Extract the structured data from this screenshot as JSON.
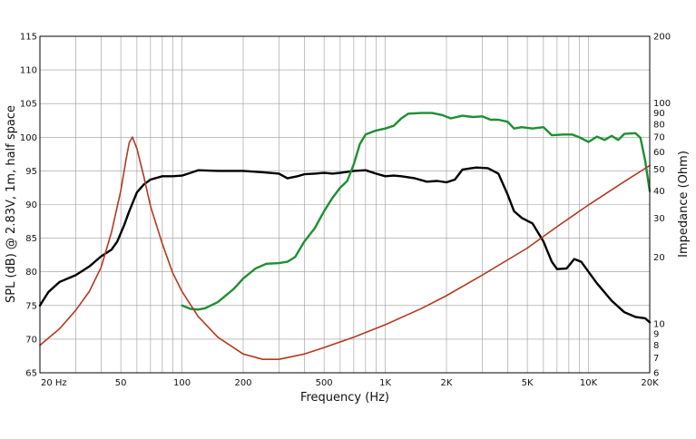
{
  "chart_data": {
    "type": "line",
    "title": "",
    "xlabel": "Frequency (Hz)",
    "ylabel": "SPL (dB) @ 2.83V, 1m, half space",
    "y2label": "Impedance (Ohm)",
    "x_scale": "log",
    "xlim": [
      20,
      20000
    ],
    "ylim": [
      65,
      115
    ],
    "y2lim": [
      6,
      200
    ],
    "y2_scale": "log",
    "grid": true,
    "x_ticks": [
      {
        "value": 20,
        "label": "20  Hz"
      },
      {
        "value": 50,
        "label": "50"
      },
      {
        "value": 100,
        "label": "100"
      },
      {
        "value": 200,
        "label": "200"
      },
      {
        "value": 500,
        "label": "500"
      },
      {
        "value": 1000,
        "label": "1K"
      },
      {
        "value": 2000,
        "label": "2K"
      },
      {
        "value": 5000,
        "label": "5K"
      },
      {
        "value": 10000,
        "label": "10K"
      },
      {
        "value": 20000,
        "label": "20K"
      }
    ],
    "y_ticks": [
      "65",
      "70",
      "75",
      "80",
      "85",
      "90",
      "95",
      "100",
      "105",
      "110",
      "115"
    ],
    "y2_ticks": [
      {
        "value": 6,
        "label": "6"
      },
      {
        "value": 7,
        "label": "7"
      },
      {
        "value": 8,
        "label": "8"
      },
      {
        "value": 9,
        "label": "9"
      },
      {
        "value": 10,
        "label": "10"
      },
      {
        "value": 20,
        "label": "20"
      },
      {
        "value": 30,
        "label": "30"
      },
      {
        "value": 40,
        "label": "40"
      },
      {
        "value": 50,
        "label": "50"
      },
      {
        "value": 60,
        "label": "60"
      },
      {
        "value": 70,
        "label": "70"
      },
      {
        "value": 80,
        "label": "80"
      },
      {
        "value": 90,
        "label": "90"
      },
      {
        "value": 100,
        "label": "100"
      },
      {
        "value": 200,
        "label": "200"
      }
    ],
    "series": [
      {
        "color": "#000000",
        "axis": "left",
        "points": [
          [
            20,
            75
          ],
          [
            22,
            77
          ],
          [
            25,
            78.5
          ],
          [
            30,
            79.5
          ],
          [
            35,
            80.8
          ],
          [
            40,
            82.3
          ],
          [
            45,
            83.3
          ],
          [
            48,
            84.5
          ],
          [
            52,
            87
          ],
          [
            55,
            89
          ],
          [
            60,
            91.8
          ],
          [
            65,
            93
          ],
          [
            70,
            93.7
          ],
          [
            80,
            94.2
          ],
          [
            90,
            94.2
          ],
          [
            100,
            94.3
          ],
          [
            110,
            94.7
          ],
          [
            120,
            95.1
          ],
          [
            150,
            95
          ],
          [
            200,
            95
          ],
          [
            250,
            94.8
          ],
          [
            300,
            94.6
          ],
          [
            330,
            93.9
          ],
          [
            370,
            94.2
          ],
          [
            400,
            94.5
          ],
          [
            450,
            94.6
          ],
          [
            500,
            94.7
          ],
          [
            550,
            94.6
          ],
          [
            600,
            94.7
          ],
          [
            700,
            95
          ],
          [
            800,
            95.1
          ],
          [
            900,
            94.6
          ],
          [
            1000,
            94.2
          ],
          [
            1100,
            94.3
          ],
          [
            1200,
            94.2
          ],
          [
            1400,
            93.9
          ],
          [
            1600,
            93.4
          ],
          [
            1800,
            93.5
          ],
          [
            2000,
            93.3
          ],
          [
            2200,
            93.7
          ],
          [
            2400,
            95.2
          ],
          [
            2800,
            95.5
          ],
          [
            3200,
            95.4
          ],
          [
            3600,
            94.6
          ],
          [
            4000,
            91.5
          ],
          [
            4300,
            89
          ],
          [
            4700,
            88
          ],
          [
            5300,
            87.2
          ],
          [
            6000,
            84.5
          ],
          [
            6600,
            81.5
          ],
          [
            7000,
            80.4
          ],
          [
            7800,
            80.5
          ],
          [
            8500,
            81.9
          ],
          [
            9200,
            81.5
          ],
          [
            10000,
            80
          ],
          [
            11000,
            78.3
          ],
          [
            13000,
            75.7
          ],
          [
            15000,
            74
          ],
          [
            17000,
            73.3
          ],
          [
            19000,
            73.1
          ],
          [
            20000,
            72.5
          ]
        ]
      },
      {
        "color": "#1e8f32",
        "axis": "left",
        "points": [
          [
            100,
            75
          ],
          [
            110,
            74.5
          ],
          [
            120,
            74.4
          ],
          [
            130,
            74.6
          ],
          [
            150,
            75.5
          ],
          [
            180,
            77.5
          ],
          [
            200,
            79
          ],
          [
            230,
            80.5
          ],
          [
            260,
            81.2
          ],
          [
            300,
            81.3
          ],
          [
            330,
            81.5
          ],
          [
            360,
            82.2
          ],
          [
            400,
            84.5
          ],
          [
            450,
            86.5
          ],
          [
            500,
            89
          ],
          [
            550,
            91
          ],
          [
            600,
            92.5
          ],
          [
            650,
            93.5
          ],
          [
            700,
            96
          ],
          [
            750,
            99
          ],
          [
            800,
            100.4
          ],
          [
            900,
            101
          ],
          [
            1000,
            101.3
          ],
          [
            1100,
            101.7
          ],
          [
            1200,
            102.8
          ],
          [
            1300,
            103.5
          ],
          [
            1500,
            103.6
          ],
          [
            1700,
            103.6
          ],
          [
            1900,
            103.3
          ],
          [
            2100,
            102.8
          ],
          [
            2400,
            103.2
          ],
          [
            2700,
            103
          ],
          [
            3000,
            103.1
          ],
          [
            3300,
            102.6
          ],
          [
            3600,
            102.6
          ],
          [
            4000,
            102.3
          ],
          [
            4300,
            101.3
          ],
          [
            4700,
            101.5
          ],
          [
            5300,
            101.3
          ],
          [
            6000,
            101.5
          ],
          [
            6600,
            100.3
          ],
          [
            7500,
            100.4
          ],
          [
            8300,
            100.4
          ],
          [
            9000,
            100
          ],
          [
            10000,
            99.3
          ],
          [
            11000,
            100.1
          ],
          [
            12000,
            99.6
          ],
          [
            13000,
            100.2
          ],
          [
            14000,
            99.6
          ],
          [
            15000,
            100.5
          ],
          [
            17000,
            100.6
          ],
          [
            18000,
            99.9
          ],
          [
            19000,
            96.5
          ],
          [
            20000,
            92
          ]
        ]
      },
      {
        "color": "#b33a1f",
        "axis": "right",
        "points": [
          [
            20,
            8
          ],
          [
            25,
            9.5
          ],
          [
            30,
            11.5
          ],
          [
            35,
            14
          ],
          [
            40,
            18
          ],
          [
            45,
            26
          ],
          [
            50,
            40
          ],
          [
            53,
            55
          ],
          [
            55,
            66
          ],
          [
            57,
            70
          ],
          [
            60,
            62
          ],
          [
            65,
            46
          ],
          [
            70,
            34
          ],
          [
            80,
            23
          ],
          [
            90,
            17
          ],
          [
            100,
            14
          ],
          [
            120,
            10.8
          ],
          [
            150,
            8.7
          ],
          [
            200,
            7.3
          ],
          [
            250,
            6.9
          ],
          [
            300,
            6.9
          ],
          [
            400,
            7.3
          ],
          [
            500,
            7.8
          ],
          [
            700,
            8.7
          ],
          [
            1000,
            9.9
          ],
          [
            1500,
            11.7
          ],
          [
            2000,
            13.4
          ],
          [
            3000,
            16.6
          ],
          [
            5000,
            22
          ],
          [
            7000,
            27.5
          ],
          [
            10000,
            34.5
          ],
          [
            15000,
            44
          ],
          [
            20000,
            52
          ]
        ]
      }
    ]
  }
}
